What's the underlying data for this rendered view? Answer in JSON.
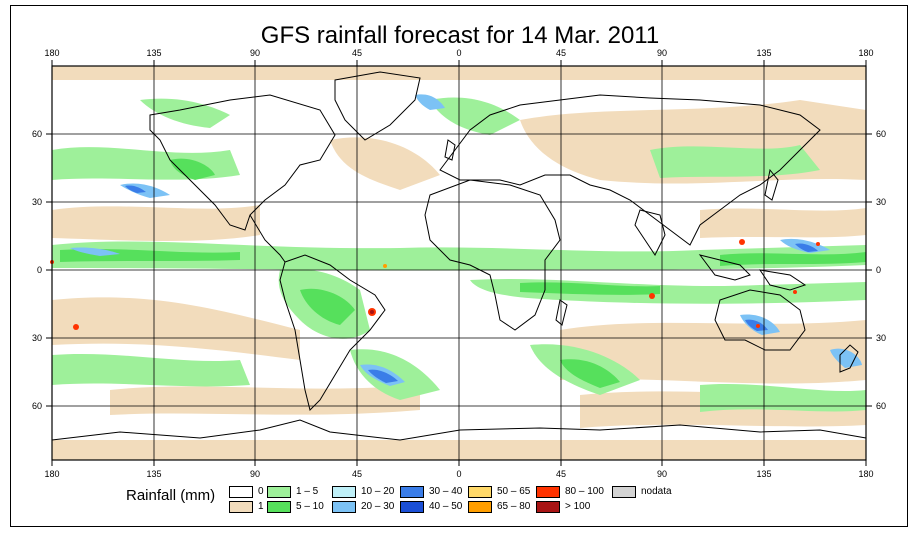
{
  "title": "GFS rainfall forecast for 14 Mar. 2011",
  "axes": {
    "x_ticks": [
      "180",
      "135",
      "90",
      "45",
      "0",
      "45",
      "90",
      "135",
      "180"
    ],
    "y_ticks": [
      "60",
      "30",
      "0",
      "30",
      "60"
    ]
  },
  "legend": {
    "title": "Rainfall (mm)",
    "items": [
      {
        "label": "0",
        "color": "#ffffff"
      },
      {
        "label": "1",
        "color": "#f2dcbc"
      },
      {
        "label": "1 – 5",
        "color": "#9ef09a"
      },
      {
        "label": "5 – 10",
        "color": "#56e05c"
      },
      {
        "label": "10 – 20",
        "color": "#bff0f8"
      },
      {
        "label": "20 – 30",
        "color": "#7cc2f5"
      },
      {
        "label": "30 – 40",
        "color": "#3a7de8"
      },
      {
        "label": "40 – 50",
        "color": "#1b4fd6"
      },
      {
        "label": "50 – 65",
        "color": "#ffd96a"
      },
      {
        "label": "65 – 80",
        "color": "#ff9e00"
      },
      {
        "label": "80 – 100",
        "color": "#ff3300"
      },
      {
        "label": "> 100",
        "color": "#a81414"
      },
      {
        "label": "nodata",
        "color": "#d3d3d3"
      }
    ]
  }
}
